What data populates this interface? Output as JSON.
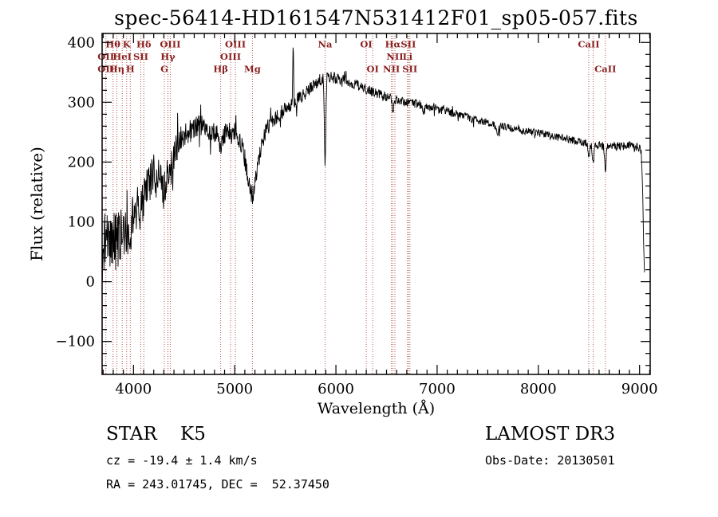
{
  "annotations": {
    "class": "STAR    K5",
    "survey": "LAMOST DR3",
    "cz": "cz = -19.4 ± 1.4 km/s",
    "obs_date": "Obs-Date: 20130501",
    "ra_dec": "RA = 243.01745, DEC =  52.37450"
  },
  "chart_data": {
    "type": "line",
    "title": "spec-56414-HD161547N531412F01_sp05-057.fits",
    "xlabel": "Wavelength (Å)",
    "ylabel": "Flux (relative)",
    "xlim": [
      3690,
      9105
    ],
    "ylim": [
      -155,
      415
    ],
    "xticks": [
      4000,
      5000,
      6000,
      7000,
      8000,
      9000
    ],
    "yticks": [
      -100,
      0,
      100,
      200,
      300,
      400
    ],
    "x_minor_step": 100,
    "y_minor_step": 20,
    "grid": false,
    "line_color": "#000000",
    "marker_color": "#b05a52",
    "label_color": "#8b1f1f",
    "spectral_lines": [
      {
        "wavelength": 3727,
        "label": "OII",
        "row": 2
      },
      {
        "wavelength": 3727,
        "label": "OII",
        "row": 3
      },
      {
        "wavelength": 3798,
        "label": "Hθ",
        "row": 1
      },
      {
        "wavelength": 3835,
        "label": "Hη",
        "row": 3
      },
      {
        "wavelength": 3889,
        "label": "HeI",
        "row": 2
      },
      {
        "wavelength": 3933,
        "label": "K",
        "row": 1
      },
      {
        "wavelength": 3968,
        "label": "H",
        "row": 3
      },
      {
        "wavelength": 4072,
        "label": "SII",
        "row": 2
      },
      {
        "wavelength": 4102,
        "label": "Hδ",
        "row": 1
      },
      {
        "wavelength": 4305,
        "label": "G",
        "row": 3
      },
      {
        "wavelength": 4340,
        "label": "Hγ",
        "row": 2
      },
      {
        "wavelength": 4363,
        "label": "OIII",
        "row": 1
      },
      {
        "wavelength": 4861,
        "label": "Hβ",
        "row": 3
      },
      {
        "wavelength": 4959,
        "label": "OIII",
        "row": 2
      },
      {
        "wavelength": 5007,
        "label": "OIII",
        "row": 1
      },
      {
        "wavelength": 5175,
        "label": "Mg",
        "row": 3
      },
      {
        "wavelength": 5893,
        "label": "Na",
        "row": 1
      },
      {
        "wavelength": 6300,
        "label": "OI",
        "row": 1
      },
      {
        "wavelength": 6364,
        "label": "OI",
        "row": 3
      },
      {
        "wavelength": 6548,
        "label": "NII",
        "row": 3
      },
      {
        "wavelength": 6563,
        "label": "Hα",
        "row": 1
      },
      {
        "wavelength": 6583,
        "label": "NII",
        "row": 2
      },
      {
        "wavelength": 6708,
        "label": "Li",
        "row": 2
      },
      {
        "wavelength": 6716,
        "label": "SII",
        "row": 1
      },
      {
        "wavelength": 6731,
        "label": "SII",
        "row": 3
      },
      {
        "wavelength": 8498,
        "label": "CaII",
        "row": 1
      },
      {
        "wavelength": 8542,
        "label": "",
        "row": 0
      },
      {
        "wavelength": 8662,
        "label": "CaII",
        "row": 3
      }
    ],
    "wave_range": [
      3692,
      9048
    ],
    "sample_step": 4,
    "noise_seed": 20130501,
    "continuum": [
      [
        3692,
        40
      ],
      [
        3700,
        55
      ],
      [
        3720,
        70
      ],
      [
        3740,
        68
      ],
      [
        3760,
        72
      ],
      [
        3780,
        75
      ],
      [
        3800,
        72
      ],
      [
        3820,
        68
      ],
      [
        3840,
        65
      ],
      [
        3860,
        70
      ],
      [
        3880,
        75
      ],
      [
        3900,
        72
      ],
      [
        3920,
        80
      ],
      [
        3940,
        88
      ],
      [
        3960,
        85
      ],
      [
        3980,
        95
      ],
      [
        4000,
        105
      ],
      [
        4020,
        112
      ],
      [
        4040,
        120
      ],
      [
        4060,
        125
      ],
      [
        4080,
        130
      ],
      [
        4100,
        135
      ],
      [
        4120,
        148
      ],
      [
        4150,
        162
      ],
      [
        4180,
        175
      ],
      [
        4210,
        183
      ],
      [
        4240,
        180
      ],
      [
        4270,
        172
      ],
      [
        4300,
        163
      ],
      [
        4330,
        175
      ],
      [
        4360,
        190
      ],
      [
        4400,
        215
      ],
      [
        4440,
        232
      ],
      [
        4480,
        242
      ],
      [
        4520,
        248
      ],
      [
        4560,
        252
      ],
      [
        4600,
        258
      ],
      [
        4640,
        262
      ],
      [
        4680,
        260
      ],
      [
        4720,
        256
      ],
      [
        4760,
        250
      ],
      [
        4800,
        248
      ],
      [
        4830,
        244
      ],
      [
        4861,
        235
      ],
      [
        4890,
        245
      ],
      [
        4920,
        250
      ],
      [
        4950,
        252
      ],
      [
        4980,
        251
      ],
      [
        5010,
        248
      ],
      [
        5040,
        238
      ],
      [
        5070,
        225
      ],
      [
        5100,
        205
      ],
      [
        5130,
        175
      ],
      [
        5160,
        148
      ],
      [
        5175,
        138
      ],
      [
        5190,
        152
      ],
      [
        5220,
        185
      ],
      [
        5250,
        215
      ],
      [
        5280,
        238
      ],
      [
        5310,
        252
      ],
      [
        5340,
        262
      ],
      [
        5370,
        268
      ],
      [
        5400,
        273
      ],
      [
        5440,
        279
      ],
      [
        5480,
        285
      ],
      [
        5520,
        291
      ],
      [
        5560,
        296
      ],
      [
        5600,
        301
      ],
      [
        5640,
        307
      ],
      [
        5680,
        313
      ],
      [
        5720,
        319
      ],
      [
        5760,
        326
      ],
      [
        5800,
        332
      ],
      [
        5840,
        338
      ],
      [
        5880,
        343
      ],
      [
        5920,
        344
      ],
      [
        5960,
        342
      ],
      [
        6000,
        340
      ],
      [
        6050,
        338
      ],
      [
        6100,
        336
      ],
      [
        6150,
        333
      ],
      [
        6200,
        330
      ],
      [
        6250,
        326
      ],
      [
        6300,
        322
      ],
      [
        6350,
        318
      ],
      [
        6400,
        315
      ],
      [
        6450,
        312
      ],
      [
        6500,
        309
      ],
      [
        6550,
        306
      ],
      [
        6600,
        304
      ],
      [
        6650,
        302
      ],
      [
        6700,
        300
      ],
      [
        6750,
        298
      ],
      [
        6800,
        297
      ],
      [
        6850,
        295
      ],
      [
        6900,
        293
      ],
      [
        6950,
        291
      ],
      [
        7000,
        289
      ],
      [
        7050,
        287
      ],
      [
        7100,
        285
      ],
      [
        7150,
        282
      ],
      [
        7200,
        280
      ],
      [
        7250,
        277
      ],
      [
        7300,
        275
      ],
      [
        7350,
        272
      ],
      [
        7400,
        270
      ],
      [
        7450,
        268
      ],
      [
        7500,
        266
      ],
      [
        7550,
        263
      ],
      [
        7600,
        261
      ],
      [
        7650,
        259
      ],
      [
        7700,
        258
      ],
      [
        7750,
        256
      ],
      [
        7800,
        254
      ],
      [
        7850,
        252
      ],
      [
        7900,
        251
      ],
      [
        7950,
        250
      ],
      [
        8000,
        249
      ],
      [
        8050,
        247
      ],
      [
        8100,
        245
      ],
      [
        8150,
        243
      ],
      [
        8200,
        241
      ],
      [
        8250,
        240
      ],
      [
        8300,
        238
      ],
      [
        8350,
        236
      ],
      [
        8400,
        234
      ],
      [
        8450,
        232
      ],
      [
        8500,
        230
      ],
      [
        8550,
        229
      ],
      [
        8600,
        228
      ],
      [
        8650,
        227
      ],
      [
        8700,
        228
      ],
      [
        8750,
        227
      ],
      [
        8800,
        226
      ],
      [
        8850,
        227
      ],
      [
        8900,
        228
      ],
      [
        8950,
        226
      ],
      [
        9000,
        222
      ],
      [
        9015,
        218
      ],
      [
        9030,
        160
      ],
      [
        9040,
        60
      ],
      [
        9048,
        8
      ]
    ],
    "features": [
      {
        "center": 4227,
        "depth": 20,
        "width": 5
      },
      {
        "center": 4300,
        "depth": 15,
        "width": 8
      },
      {
        "center": 4861,
        "depth": 18,
        "width": 6
      },
      {
        "center": 5577,
        "depth": -100,
        "width": 4
      },
      {
        "center": 5893,
        "depth": 145,
        "width": 7
      },
      {
        "center": 6563,
        "depth": 26,
        "width": 6
      },
      {
        "center": 6869,
        "depth": 10,
        "width": 9
      },
      {
        "center": 7594,
        "depth": 16,
        "width": 12
      },
      {
        "center": 8498,
        "depth": 26,
        "width": 7
      },
      {
        "center": 8542,
        "depth": 34,
        "width": 8
      },
      {
        "center": 8662,
        "depth": 38,
        "width": 8
      }
    ],
    "noise": [
      [
        3692,
        50
      ],
      [
        3750,
        52
      ],
      [
        3850,
        48
      ],
      [
        3950,
        45
      ],
      [
        4050,
        42
      ],
      [
        4150,
        38
      ],
      [
        4250,
        34
      ],
      [
        4350,
        30
      ],
      [
        4450,
        24
      ],
      [
        4550,
        20
      ],
      [
        4700,
        18
      ],
      [
        4900,
        16
      ],
      [
        5100,
        17
      ],
      [
        5300,
        14
      ],
      [
        5500,
        12
      ],
      [
        5700,
        11
      ],
      [
        5900,
        10
      ],
      [
        6100,
        9
      ],
      [
        6400,
        8
      ],
      [
        6700,
        7.5
      ],
      [
        7000,
        7
      ],
      [
        7400,
        6.5
      ],
      [
        7800,
        6
      ],
      [
        8200,
        6.5
      ],
      [
        8600,
        7
      ],
      [
        9000,
        8
      ]
    ]
  }
}
